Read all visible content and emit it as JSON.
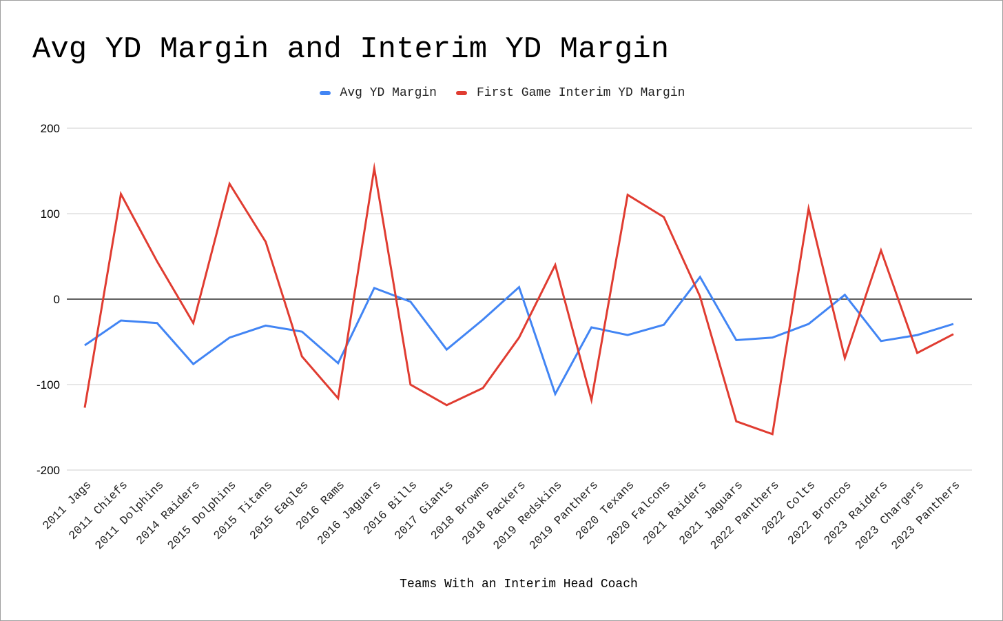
{
  "chart_data": {
    "type": "line",
    "title": "Avg YD Margin and Interim YD Margin",
    "xlabel": "Teams With an Interim Head Coach",
    "ylabel": "",
    "ylim": [
      -200,
      200
    ],
    "yticks": [
      200,
      100,
      0,
      -100,
      -200
    ],
    "grid": true,
    "legend": "top-center",
    "categories": [
      "2011 Jags",
      "2011 Chiefs",
      "2011 Dolphins",
      "2014 Raiders",
      "2015 Dolphins",
      "2015 Titans",
      "2015 Eagles",
      "2016 Rams",
      "2016 Jaguars",
      "2016 Bills",
      "2017 Giants",
      "2018 Browns",
      "2018 Packers",
      "2019 Redskins",
      "2019 Panthers",
      "2020 Texans",
      "2020 Falcons",
      "2021 Raiders",
      "2021 Jaguars",
      "2022 Panthers",
      "2022 Colts",
      "2022 Broncos",
      "2023 Raiders",
      "2023 Chargers",
      "2023 Panthers"
    ],
    "series": [
      {
        "name": "Avg YD Margin",
        "color": "#4285f4",
        "values": [
          -54,
          -25,
          -28,
          -76,
          -45,
          -31,
          -38,
          -75,
          13,
          -3,
          -59,
          -24,
          14,
          -111,
          -33,
          -42,
          -30,
          26,
          -48,
          -45,
          -29,
          5,
          -49,
          -42,
          -29
        ]
      },
      {
        "name": "First Game Interim YD Margin",
        "color": "#e03c31",
        "values": [
          -127,
          123,
          44,
          -28,
          135,
          67,
          -67,
          -116,
          153,
          -100,
          -124,
          -104,
          -45,
          40,
          -118,
          122,
          96,
          3,
          -143,
          -158,
          106,
          -69,
          57,
          -63,
          -41
        ]
      }
    ]
  }
}
